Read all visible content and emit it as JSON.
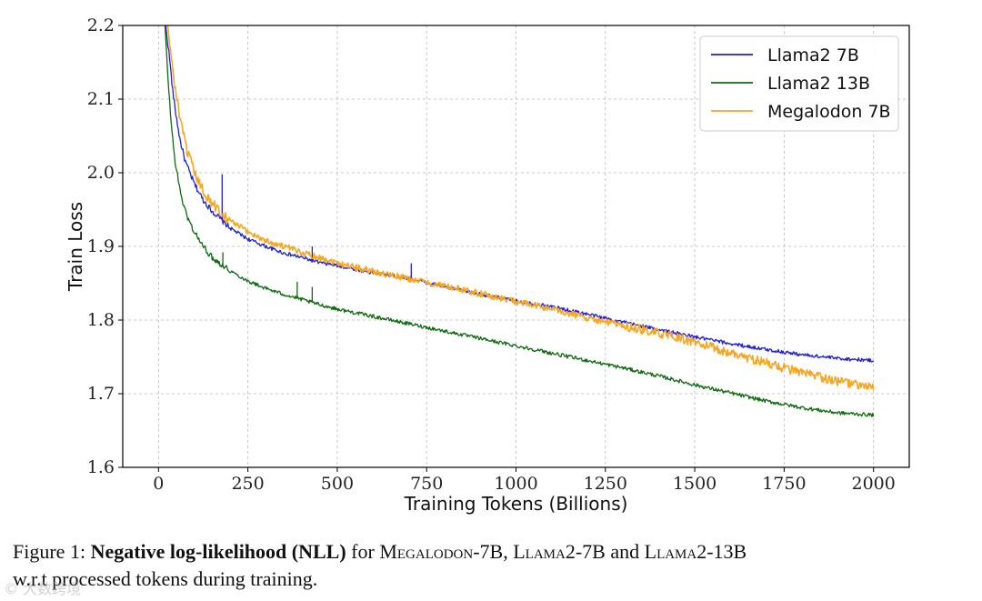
{
  "chart_data": {
    "type": "line",
    "title": "",
    "xlabel": "Training Tokens (Billions)",
    "ylabel": "Train Loss",
    "xlim": [
      -100,
      2100
    ],
    "ylim": [
      1.6,
      2.2
    ],
    "xticks": [
      0,
      250,
      500,
      750,
      1000,
      1250,
      1500,
      1750,
      2000
    ],
    "xtick_labels": [
      "0",
      "250",
      "500",
      "750",
      "1000",
      "1250",
      "1500",
      "1750",
      "2000"
    ],
    "yticks": [
      1.6,
      1.7,
      1.8,
      1.9,
      2.0,
      2.1,
      2.2
    ],
    "ytick_labels": [
      "1.6",
      "1.7",
      "1.8",
      "1.9",
      "2.0",
      "2.1",
      "2.2"
    ],
    "grid": true,
    "legend_position": "top-right",
    "series": [
      {
        "name": "Llama2 7B",
        "color": "#1f1fd6",
        "x": [
          20,
          30,
          40,
          50,
          60,
          75,
          100,
          125,
          150,
          200,
          250,
          300,
          350,
          400,
          450,
          500,
          600,
          700,
          800,
          900,
          1000,
          1100,
          1200,
          1300,
          1400,
          1500,
          1600,
          1700,
          1800,
          1900,
          2000
        ],
        "values": [
          2.2,
          2.16,
          2.11,
          2.075,
          2.045,
          2.015,
          1.985,
          1.963,
          1.948,
          1.925,
          1.91,
          1.9,
          1.891,
          1.885,
          1.878,
          1.874,
          1.864,
          1.857,
          1.845,
          1.835,
          1.826,
          1.818,
          1.808,
          1.797,
          1.787,
          1.777,
          1.768,
          1.76,
          1.753,
          1.748,
          1.745
        ],
        "spikes": [
          {
            "x": 178,
            "y": 1.998
          },
          {
            "x": 707,
            "y": 1.877
          },
          {
            "x": 430,
            "y": 1.9
          }
        ]
      },
      {
        "name": "Llama2 13B",
        "color": "#0f6b0f",
        "x": [
          18,
          25,
          35,
          45,
          55,
          70,
          85,
          100,
          125,
          150,
          200,
          250,
          300,
          350,
          400,
          450,
          500,
          600,
          700,
          800,
          900,
          1000,
          1100,
          1200,
          1300,
          1400,
          1500,
          1600,
          1700,
          1800,
          1900,
          2000
        ],
        "values": [
          2.2,
          2.14,
          2.07,
          2.02,
          1.99,
          1.955,
          1.935,
          1.92,
          1.9,
          1.885,
          1.867,
          1.853,
          1.843,
          1.835,
          1.828,
          1.821,
          1.815,
          1.805,
          1.795,
          1.785,
          1.775,
          1.765,
          1.755,
          1.745,
          1.735,
          1.724,
          1.712,
          1.701,
          1.69,
          1.681,
          1.674,
          1.671
        ],
        "spikes": [
          {
            "x": 388,
            "y": 1.852
          },
          {
            "x": 430,
            "y": 1.845
          },
          {
            "x": 180,
            "y": 1.892
          }
        ]
      },
      {
        "name": "Megalodon 7B",
        "color": "#f5a623",
        "x": [
          25,
          35,
          45,
          55,
          65,
          80,
          100,
          125,
          150,
          200,
          250,
          300,
          350,
          400,
          450,
          500,
          600,
          700,
          800,
          900,
          1000,
          1100,
          1200,
          1300,
          1400,
          1500,
          1600,
          1700,
          1800,
          1900,
          2000
        ],
        "values": [
          2.2,
          2.16,
          2.12,
          2.09,
          2.06,
          2.03,
          2.0,
          1.975,
          1.958,
          1.935,
          1.92,
          1.908,
          1.9,
          1.892,
          1.885,
          1.878,
          1.866,
          1.856,
          1.846,
          1.836,
          1.825,
          1.815,
          1.803,
          1.792,
          1.782,
          1.77,
          1.755,
          1.742,
          1.728,
          1.717,
          1.708
        ],
        "spikes": []
      }
    ]
  },
  "caption": {
    "prefix": "Figure 1: ",
    "bold": "Negative log-likelihood (NLL)",
    "for_text": " for ",
    "m1_cap": "M",
    "m1_rest": "egalodon",
    "m1_suffix": "-7B, ",
    "l1_cap": "L",
    "l1_rest": "lama",
    "l1_suffix": "2-7B and ",
    "l2_cap": "L",
    "l2_rest": "lama",
    "l2_suffix": "2-13B",
    "line2": "w.r.t processed tokens during training."
  },
  "watermark": "© 大数跨境"
}
